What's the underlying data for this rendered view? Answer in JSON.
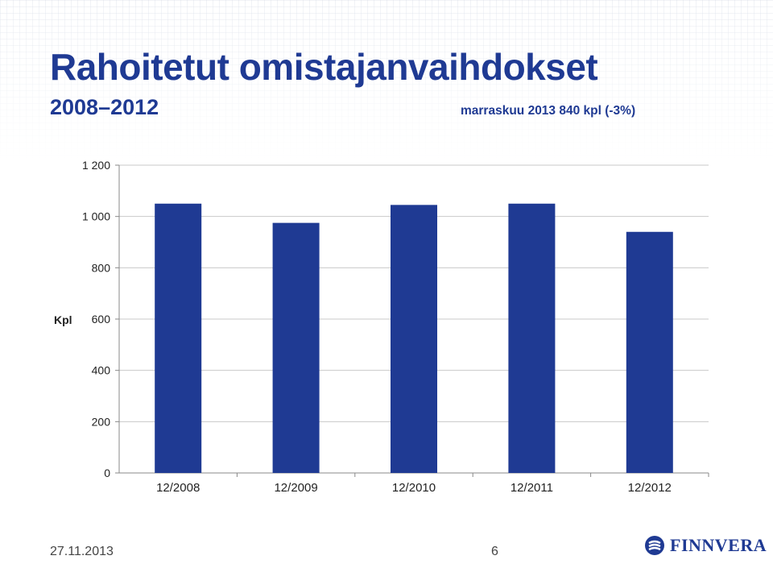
{
  "title": "Rahoitetut omistajanvaihdokset",
  "subtitle": "2008–2012",
  "note": "marraskuu 2013  840 kpl (-3%)",
  "footer": {
    "date": "27.11.2013",
    "page": "6"
  },
  "logo": {
    "text": "FINNVERA"
  },
  "colors": {
    "bar": "#1f3a93",
    "title": "#1f3a93",
    "grid": "#c9c9c9"
  },
  "chart_data": {
    "type": "bar",
    "categories": [
      "12/2008",
      "12/2009",
      "12/2010",
      "12/2011",
      "12/2012"
    ],
    "values": [
      1050,
      975,
      1045,
      1050,
      940
    ],
    "ylabel": "Kpl",
    "ylim": [
      0,
      1200
    ],
    "yticks": [
      0,
      200,
      400,
      600,
      800,
      1000,
      1200
    ],
    "ytick_labels": [
      "0",
      "200",
      "400",
      "600",
      "800",
      "1 000",
      "1 200"
    ],
    "grid": true
  }
}
